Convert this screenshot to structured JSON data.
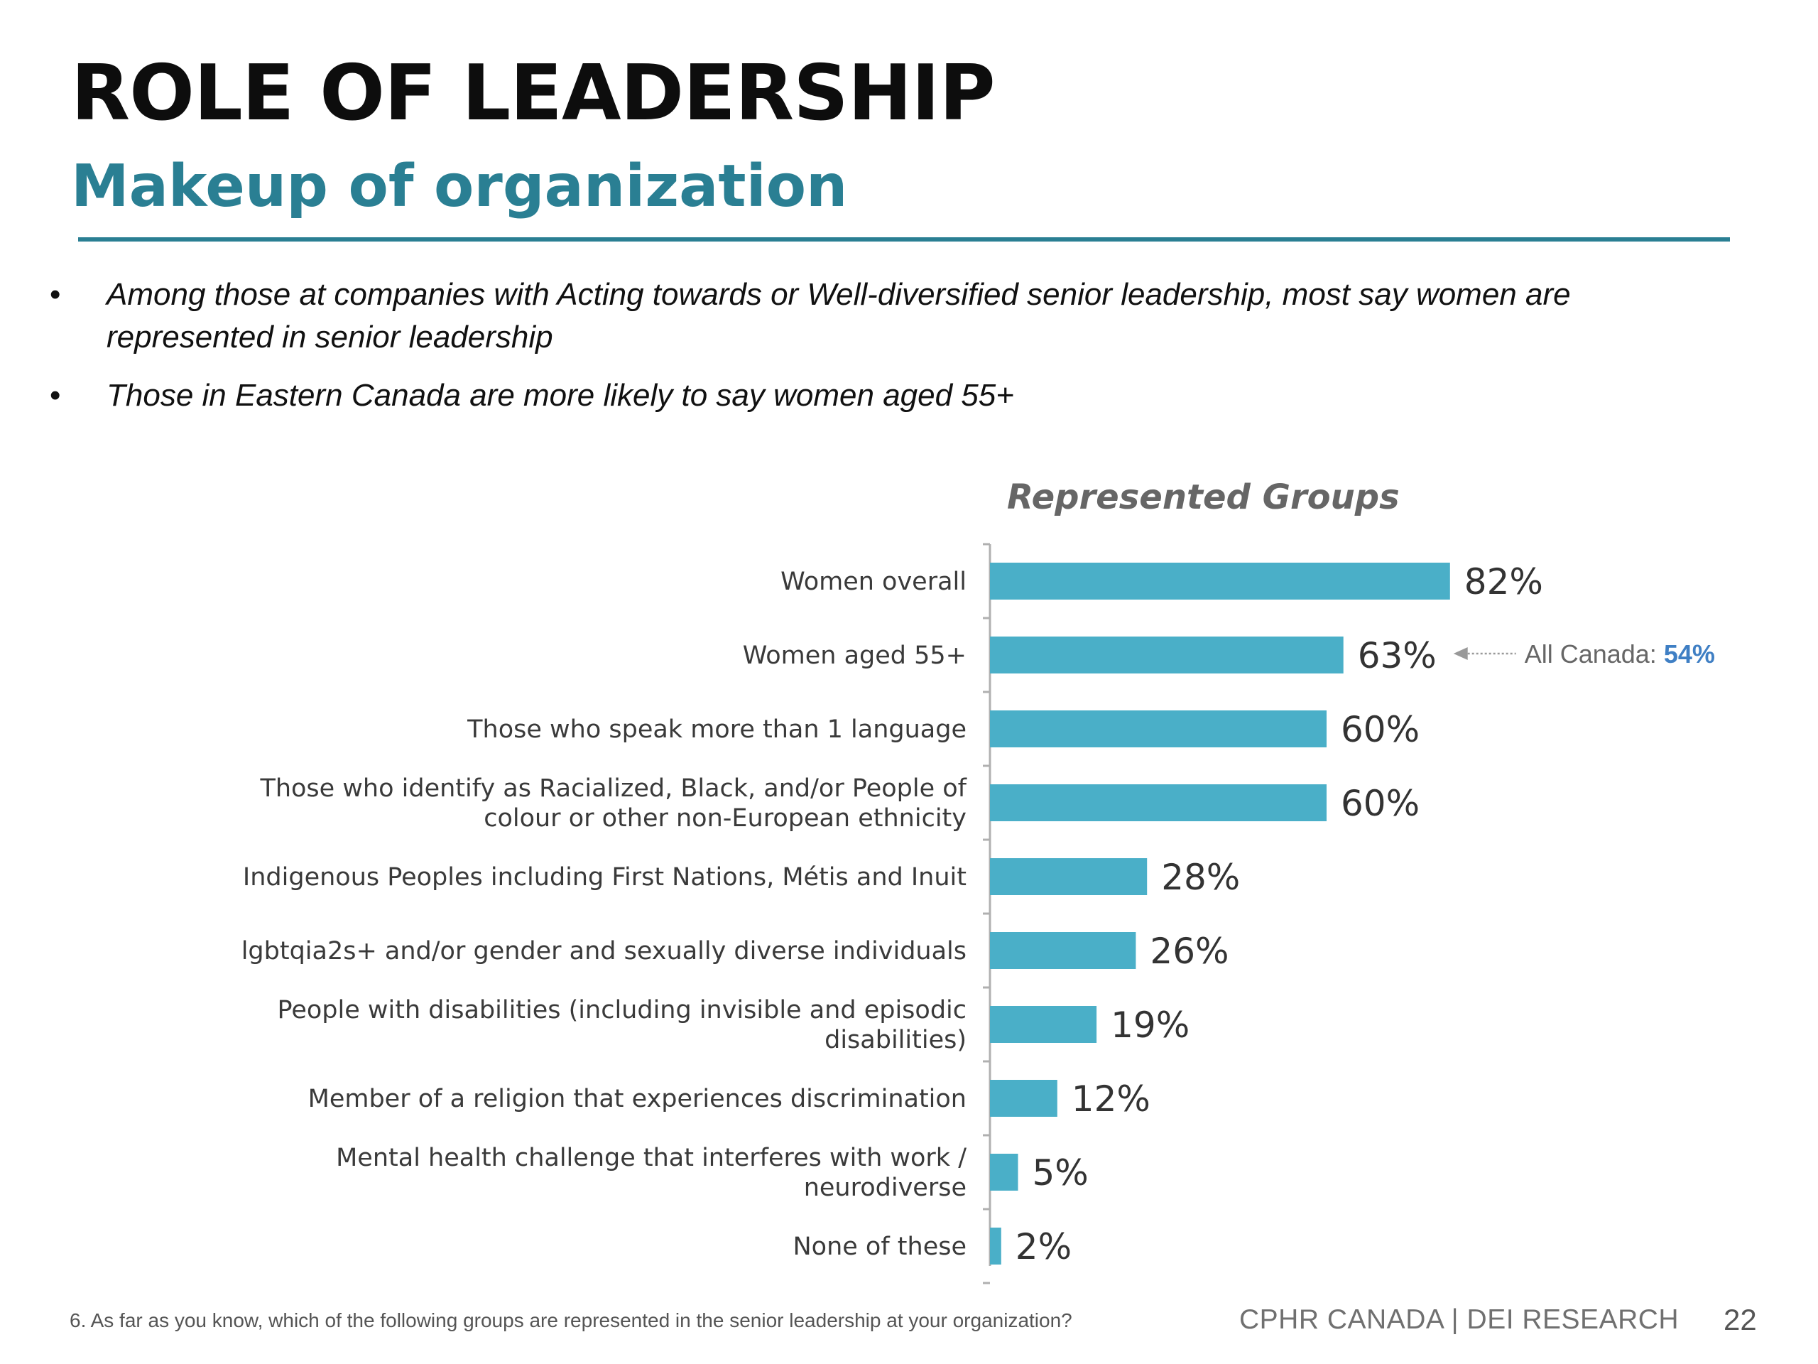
{
  "slide": {
    "title": "ROLE OF LEADERSHIP",
    "subtitle": "Makeup of organization",
    "bullets": [
      "Among those at companies with Acting towards or Well-diversified senior leadership, most say women are represented in senior leadership",
      "Those in Eastern Canada are more likely to say women aged 55+"
    ],
    "bullet_symbol": "•"
  },
  "chart_data": {
    "type": "bar",
    "orientation": "horizontal",
    "title": "Represented Groups",
    "categories": [
      [
        "Women overall"
      ],
      [
        "Women aged 55+"
      ],
      [
        "Those who speak more than 1 language"
      ],
      [
        "Those who identify as Racialized, Black, and/or People of",
        "colour or other non-European ethnicity"
      ],
      [
        "Indigenous Peoples including First Nations, Métis and Inuit"
      ],
      [
        "lgbtqia2s+ and/or gender and sexually diverse individuals"
      ],
      [
        "People with disabilities (including invisible and episodic",
        "disabilities)"
      ],
      [
        "Member of a religion that experiences discrimination"
      ],
      [
        "Mental health challenge that interferes with work /",
        "neurodiverse"
      ],
      [
        "None of these"
      ]
    ],
    "values": [
      82,
      63,
      60,
      60,
      28,
      26,
      19,
      12,
      5,
      2
    ],
    "value_labels": [
      "82%",
      "63%",
      "60%",
      "60%",
      "28%",
      "26%",
      "19%",
      "12%",
      "5%",
      "2%"
    ],
    "xlim": [
      0,
      100
    ],
    "bar_color": "#4aafc8",
    "axis_color": "#b0b0b0",
    "grid": false,
    "legend": "none",
    "annotation": {
      "target_index": 1,
      "label": "All Canada:",
      "value": "54%",
      "value_color": "#3f7fc4",
      "arrow_color": "#999999"
    }
  },
  "footer": {
    "question": "6. As far as you know, which of the following groups are represented in the senior leadership at your organization?",
    "brand": "CPHR CANADA  |  DEI RESEARCH",
    "page_number": "22"
  }
}
